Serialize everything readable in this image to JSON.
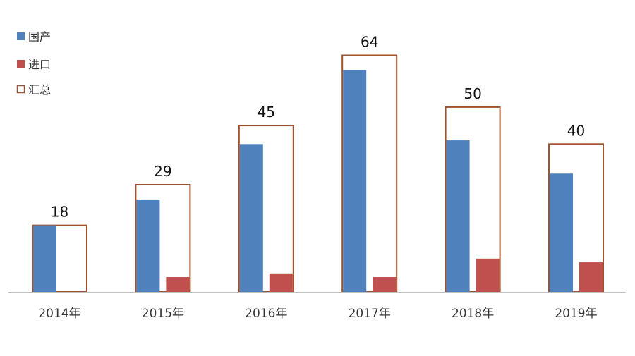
{
  "chart_data": {
    "type": "bar",
    "categories": [
      "2014年",
      "2015年",
      "2016年",
      "2017年",
      "2018年",
      "2019年"
    ],
    "series": [
      {
        "name": "国产",
        "values": [
          18,
          25,
          40,
          60,
          41,
          32
        ],
        "color": "#4f81bd"
      },
      {
        "name": "进口",
        "values": [
          0,
          4,
          5,
          4,
          9,
          8
        ],
        "color": "#c0504d"
      },
      {
        "name": "汇总",
        "values": [
          18,
          29,
          45,
          64,
          50,
          40
        ],
        "color": "#a0522d",
        "style": "outline"
      }
    ],
    "data_labels": [
      "18",
      "29",
      "45",
      "64",
      "50",
      "40"
    ],
    "title": "",
    "xlabel": "",
    "ylabel": "",
    "ylim": [
      0,
      75
    ],
    "grid": false,
    "legend_position": "top-left"
  }
}
